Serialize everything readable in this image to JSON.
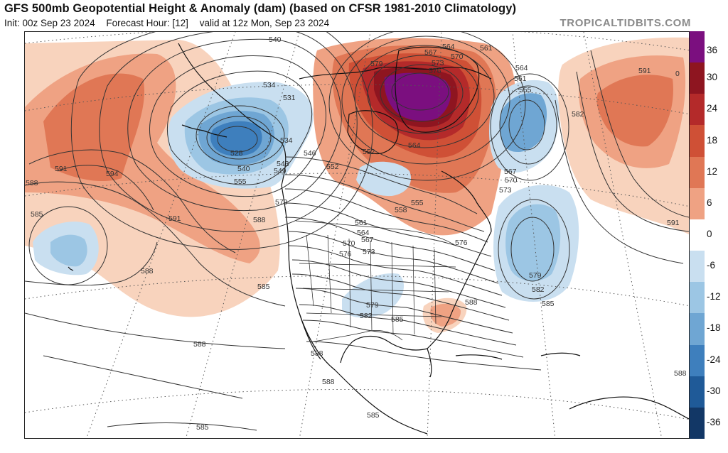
{
  "header": {
    "title": "GFS 500mb Geopotential Height & Anomaly (dam) (based on CFSR 1981-2010 Climatology)",
    "init": "Init: 00z Sep 23 2024",
    "forecast_hour": "Forecast Hour: [12]",
    "valid": "valid at 12z Mon, Sep 23 2024",
    "brand": "TROPICALTIDBITS.COM"
  },
  "colors": {
    "pos_36": "#7b0f7f",
    "pos_30": "#8e1520",
    "pos_24": "#b42a2a",
    "pos_18": "#cf5036",
    "pos_12": "#e07755",
    "pos_6": "#efa283",
    "pos_0": "#f8d3bd",
    "neutral": "#ffffff",
    "neg_6": "#c9dff0",
    "neg_12": "#9cc6e4",
    "neg_18": "#6fa6d3",
    "neg_24": "#3e7fbd",
    "neg_30": "#1f5a98",
    "neg_36": "#123766"
  },
  "colorbar": {
    "ticks": [
      "36",
      "30",
      "24",
      "18",
      "12",
      "6",
      "0",
      "-6",
      "-12",
      "-18",
      "-24",
      "-30",
      "-36"
    ]
  },
  "contour_labels": [
    {
      "text": "540"
    },
    {
      "text": "534"
    },
    {
      "text": "531"
    },
    {
      "text": "528"
    },
    {
      "text": "540"
    },
    {
      "text": "534"
    },
    {
      "text": "546"
    },
    {
      "text": "543"
    },
    {
      "text": "549"
    },
    {
      "text": "552"
    },
    {
      "text": "555"
    },
    {
      "text": "567"
    },
    {
      "text": "564"
    },
    {
      "text": "570"
    },
    {
      "text": "561"
    },
    {
      "text": "579"
    },
    {
      "text": "573"
    },
    {
      "text": "576"
    },
    {
      "text": "564"
    },
    {
      "text": "561"
    },
    {
      "text": "555"
    },
    {
      "text": "582"
    },
    {
      "text": "591"
    },
    {
      "text": "552"
    },
    {
      "text": "564"
    },
    {
      "text": "567"
    },
    {
      "text": "570"
    },
    {
      "text": "573"
    },
    {
      "text": "558"
    },
    {
      "text": "555"
    },
    {
      "text": "561"
    },
    {
      "text": "564"
    },
    {
      "text": "567"
    },
    {
      "text": "570"
    },
    {
      "text": "573"
    },
    {
      "text": "576"
    },
    {
      "text": "576"
    },
    {
      "text": "579"
    },
    {
      "text": "582"
    },
    {
      "text": "585"
    },
    {
      "text": "591"
    },
    {
      "text": "594"
    },
    {
      "text": "588"
    },
    {
      "text": "585"
    },
    {
      "text": "591"
    },
    {
      "text": "588"
    },
    {
      "text": "579"
    },
    {
      "text": "588"
    },
    {
      "text": "585"
    },
    {
      "text": "579"
    },
    {
      "text": "582"
    },
    {
      "text": "585"
    },
    {
      "text": "588"
    },
    {
      "text": "588"
    },
    {
      "text": "588"
    },
    {
      "text": "588"
    },
    {
      "text": "585"
    },
    {
      "text": "585"
    },
    {
      "text": "588"
    },
    {
      "text": "591"
    },
    {
      "text": "0"
    }
  ]
}
